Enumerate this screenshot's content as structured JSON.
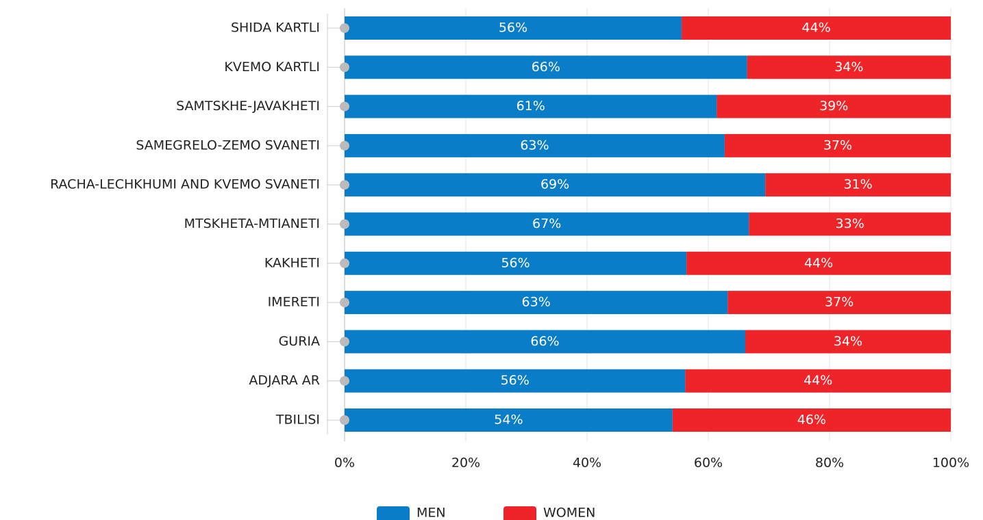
{
  "chart_data": {
    "type": "stacked_barh",
    "categories": [
      "SHIDA KARTLI",
      "KVEMO KARTLI",
      "SAMTSKHE-JAVAKHETI",
      "SAMEGRELO-ZEMO SVANETI",
      "RACHA-LECHKHUMI AND KVEMO SVANETI",
      "MTSKHETA-MTIANETI",
      "KAKHETI",
      "IMERETI",
      "GURIA",
      "ADJARA AR",
      "TBILISI"
    ],
    "series": [
      {
        "name": "MEN",
        "color": "#0a7dc8",
        "values": [
          55.6,
          66.4,
          61.4,
          62.7,
          69.4,
          66.7,
          56.4,
          63.2,
          66.1,
          56.2,
          54.1
        ],
        "value_labels": [
          "56%",
          "66%",
          "61%",
          "63%",
          "69%",
          "67%",
          "56%",
          "63%",
          "66%",
          "56%",
          "54%"
        ]
      },
      {
        "name": "WOMEN",
        "color": "#ee2428",
        "values": [
          44.4,
          33.6,
          38.6,
          37.3,
          30.6,
          33.3,
          43.6,
          36.8,
          33.9,
          43.8,
          45.9
        ],
        "value_labels": [
          "44%",
          "34%",
          "39%",
          "37%",
          "31%",
          "33%",
          "44%",
          "37%",
          "34%",
          "44%",
          "46%"
        ]
      }
    ],
    "xlim": [
      0,
      100
    ],
    "xticks": [
      {
        "value": 0,
        "label": "0%"
      },
      {
        "value": 20,
        "label": "20%"
      },
      {
        "value": 40,
        "label": "40%"
      },
      {
        "value": 60,
        "label": "60%"
      },
      {
        "value": 80,
        "label": "80%"
      },
      {
        "value": 100,
        "label": "100%"
      }
    ],
    "grid": true,
    "legend": "bottom"
  }
}
